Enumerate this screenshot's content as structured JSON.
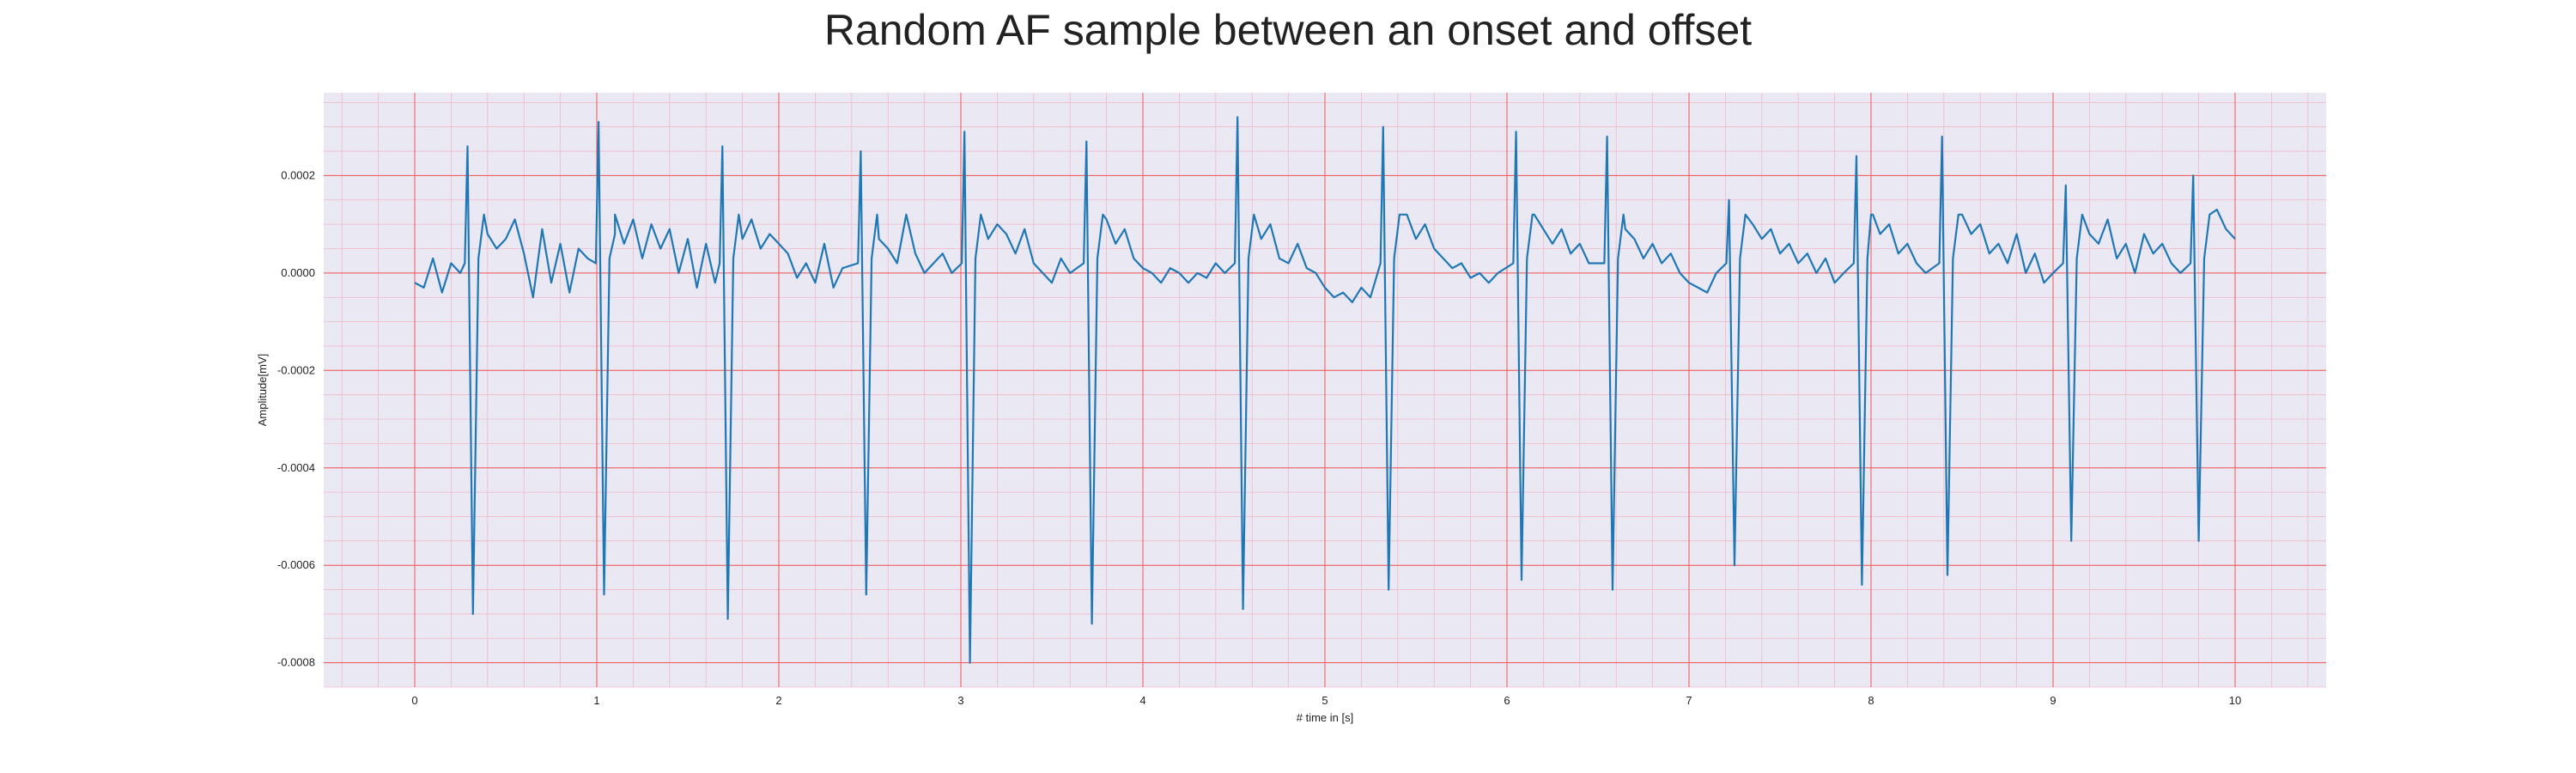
{
  "chart_data": {
    "type": "line",
    "title": "Random AF sample between an onset and offset",
    "xlabel": "# time in [s]",
    "ylabel": "Amplitude[mV]",
    "xlim": [
      -0.5,
      10.5
    ],
    "ylim": [
      -0.00085,
      0.00037
    ],
    "xticks": [
      0,
      1,
      2,
      3,
      4,
      5,
      6,
      7,
      8,
      9,
      10
    ],
    "xtick_labels": [
      "0",
      "1",
      "2",
      "3",
      "4",
      "5",
      "6",
      "7",
      "8",
      "9",
      "10"
    ],
    "yticks": [
      0.0002,
      0.0,
      -0.0002,
      -0.0004,
      -0.0006,
      -0.0008
    ],
    "ytick_labels": [
      "0.0002",
      "0.0000",
      "-0.0002",
      "-0.0004",
      "-0.0006",
      "-0.0008"
    ],
    "grid": true,
    "minor_grid": true,
    "series": [
      {
        "color": "#1f77b4",
        "r_peaks_s": [
          0.32,
          1.04,
          1.72,
          2.48,
          3.05,
          3.72,
          4.55,
          5.35,
          6.08,
          6.58,
          7.25,
          7.95,
          8.42,
          9.1,
          9.8
        ],
        "r_peak_max_mV": [
          0.00026,
          0.00031,
          0.00026,
          0.00025,
          0.00029,
          0.00027,
          0.00032,
          0.0003,
          0.00029,
          0.00028,
          0.00015,
          0.00024,
          0.00028,
          0.00018,
          0.0002
        ],
        "s_wave_min_mV": [
          -0.0007,
          -0.00066,
          -0.00071,
          -0.00066,
          -0.0008,
          -0.00072,
          -0.00069,
          -0.00065,
          -0.00063,
          -0.00065,
          -0.0006,
          -0.00064,
          -0.00062,
          -0.00055,
          -0.00055
        ],
        "x": [
          0.0,
          0.05,
          0.1,
          0.15,
          0.2,
          0.25,
          0.4,
          0.45,
          0.5,
          0.55,
          0.6,
          0.65,
          0.7,
          0.75,
          0.8,
          0.85,
          0.9,
          0.95,
          1.1,
          1.15,
          1.2,
          1.25,
          1.3,
          1.35,
          1.4,
          1.45,
          1.5,
          1.55,
          1.6,
          1.65,
          1.8,
          1.85,
          1.9,
          1.95,
          2.0,
          2.05,
          2.1,
          2.15,
          2.2,
          2.25,
          2.3,
          2.35,
          2.55,
          2.6,
          2.65,
          2.7,
          2.75,
          2.8,
          2.85,
          2.9,
          2.95,
          3.15,
          3.2,
          3.25,
          3.3,
          3.35,
          3.4,
          3.45,
          3.5,
          3.55,
          3.6,
          3.8,
          3.85,
          3.9,
          3.95,
          4.0,
          4.05,
          4.1,
          4.15,
          4.2,
          4.25,
          4.3,
          4.35,
          4.4,
          4.45,
          4.6,
          4.65,
          4.7,
          4.75,
          4.8,
          4.85,
          4.9,
          4.95,
          5.0,
          5.05,
          5.1,
          5.15,
          5.2,
          5.25,
          5.45,
          5.5,
          5.55,
          5.6,
          5.65,
          5.7,
          5.75,
          5.8,
          5.85,
          5.9,
          5.95,
          6.15,
          6.2,
          6.25,
          6.3,
          6.35,
          6.4,
          6.45,
          6.65,
          6.7,
          6.75,
          6.8,
          6.85,
          6.9,
          6.95,
          7.0,
          7.05,
          7.1,
          7.15,
          7.35,
          7.4,
          7.45,
          7.5,
          7.55,
          7.6,
          7.65,
          7.7,
          7.75,
          7.8,
          7.85,
          8.0,
          8.05,
          8.1,
          8.15,
          8.2,
          8.25,
          8.3,
          8.5,
          8.55,
          8.6,
          8.65,
          8.7,
          8.75,
          8.8,
          8.85,
          8.9,
          8.95,
          9.0,
          9.2,
          9.25,
          9.3,
          9.35,
          9.4,
          9.45,
          9.5,
          9.55,
          9.6,
          9.65,
          9.7,
          9.9,
          9.95,
          10.0
        ],
        "y": [
          -2e-05,
          -3e-05,
          3e-05,
          -4e-05,
          2e-05,
          0.0,
          8e-05,
          5e-05,
          7e-05,
          0.00011,
          4e-05,
          -5e-05,
          9e-05,
          -2e-05,
          6e-05,
          -4e-05,
          5e-05,
          3e-05,
          8e-05,
          6e-05,
          0.00011,
          3e-05,
          0.0001,
          5e-05,
          9e-05,
          0.0,
          7e-05,
          -3e-05,
          6e-05,
          -2e-05,
          7e-05,
          0.00011,
          5e-05,
          8e-05,
          6e-05,
          4e-05,
          -1e-05,
          2e-05,
          -2e-05,
          6e-05,
          -3e-05,
          1e-05,
          7e-05,
          5e-05,
          2e-05,
          0.00012,
          4e-05,
          0.0,
          2e-05,
          4e-05,
          0.0,
          7e-05,
          0.0001,
          8e-05,
          4e-05,
          9e-05,
          2e-05,
          0.0,
          -2e-05,
          3e-05,
          0.0,
          0.00011,
          6e-05,
          9e-05,
          3e-05,
          1e-05,
          0.0,
          -2e-05,
          1e-05,
          0.0,
          -2e-05,
          0.0,
          -1e-05,
          2e-05,
          0.0,
          9e-05,
          7e-05,
          0.0001,
          3e-05,
          2e-05,
          6e-05,
          1e-05,
          0.0,
          -3e-05,
          -5e-05,
          -4e-05,
          -6e-05,
          -3e-05,
          -5e-05,
          0.00012,
          7e-05,
          0.0001,
          5e-05,
          3e-05,
          1e-05,
          2e-05,
          -1e-05,
          0.0,
          -2e-05,
          0.0,
          0.00012,
          9e-05,
          6e-05,
          9e-05,
          4e-05,
          6e-05,
          2e-05,
          9e-05,
          7e-05,
          3e-05,
          6e-05,
          2e-05,
          4e-05,
          0.0,
          -2e-05,
          -3e-05,
          -4e-05,
          0.0,
          0.0001,
          7e-05,
          9e-05,
          4e-05,
          6e-05,
          2e-05,
          4e-05,
          0.0,
          3e-05,
          -2e-05,
          0.0,
          0.00012,
          8e-05,
          0.0001,
          4e-05,
          6e-05,
          2e-05,
          0.0,
          0.00012,
          8e-05,
          0.0001,
          4e-05,
          6e-05,
          2e-05,
          8e-05,
          0.0,
          4e-05,
          -2e-05,
          0.0,
          8e-05,
          6e-05,
          0.00011,
          3e-05,
          6e-05,
          0.0,
          8e-05,
          4e-05,
          6e-05,
          2e-05,
          0.0,
          0.00013,
          9e-05,
          7e-05
        ]
      }
    ]
  }
}
